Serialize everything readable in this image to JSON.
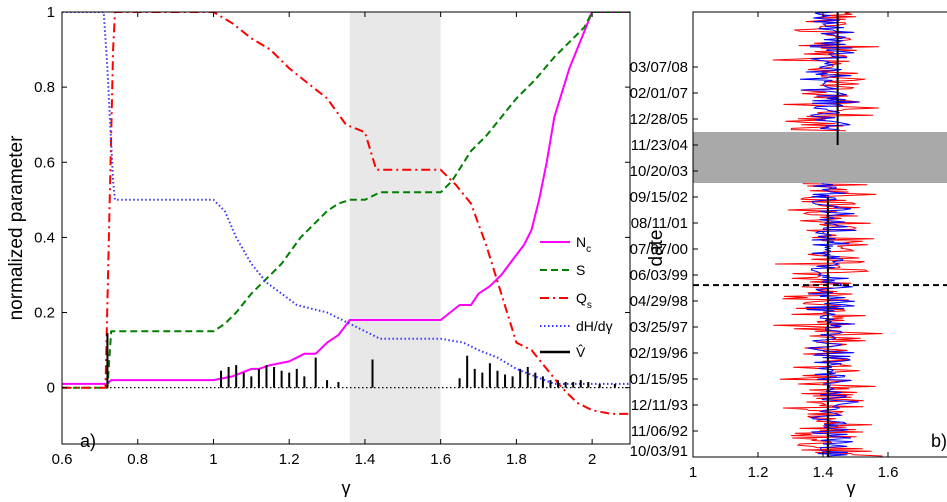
{
  "chart_data": [
    {
      "type": "line",
      "panel_label": "a)",
      "xlabel": "γ",
      "ylabel": "normalized parameter",
      "xlim": [
        0.6,
        2.1
      ],
      "ylim": [
        -0.15,
        1.0
      ],
      "xticks": [
        "0.6",
        "0.8",
        "1",
        "1.2",
        "1.4",
        "1.6",
        "1.8",
        "2"
      ],
      "xtick_values": [
        0.6,
        0.8,
        1.0,
        1.2,
        1.4,
        1.6,
        1.8,
        2.0
      ],
      "yticks": [
        "0",
        "0.2",
        "0.4",
        "0.6",
        "0.8",
        "1"
      ],
      "ytick_values": [
        0,
        0.2,
        0.4,
        0.6,
        0.8,
        1.0
      ],
      "shaded_region": [
        1.36,
        1.6
      ],
      "grid": false,
      "legend_position": "right",
      "series": [
        {
          "key": "Nc",
          "legend_main": "N",
          "legend_sub": "c",
          "color": "#ff00ff",
          "style": "solid",
          "x": [
            0.6,
            0.72,
            0.73,
            1.0,
            1.05,
            1.1,
            1.12,
            1.15,
            1.2,
            1.24,
            1.27,
            1.3,
            1.33,
            1.36,
            1.6,
            1.65,
            1.68,
            1.7,
            1.73,
            1.76,
            1.79,
            1.82,
            1.84,
            1.86,
            1.88,
            1.9,
            1.94,
            1.98,
            2.0,
            2.1
          ],
          "y": [
            0.01,
            0.01,
            0.02,
            0.02,
            0.03,
            0.05,
            0.05,
            0.06,
            0.07,
            0.09,
            0.09,
            0.12,
            0.14,
            0.18,
            0.18,
            0.22,
            0.22,
            0.25,
            0.27,
            0.3,
            0.34,
            0.38,
            0.42,
            0.5,
            0.6,
            0.72,
            0.85,
            0.95,
            1.0,
            1.0
          ]
        },
        {
          "key": "S",
          "legend_main": "S",
          "legend_sub": "",
          "color": "#008000",
          "style": "dashed",
          "x": [
            0.6,
            0.72,
            0.73,
            1.0,
            1.03,
            1.06,
            1.1,
            1.15,
            1.18,
            1.23,
            1.27,
            1.3,
            1.33,
            1.36,
            1.4,
            1.44,
            1.6,
            1.63,
            1.68,
            1.72,
            1.76,
            1.8,
            1.85,
            1.9,
            1.95,
            1.98,
            2.0,
            2.1
          ],
          "y": [
            0.0,
            0.0,
            0.15,
            0.15,
            0.17,
            0.2,
            0.25,
            0.3,
            0.33,
            0.4,
            0.44,
            0.47,
            0.49,
            0.5,
            0.5,
            0.52,
            0.52,
            0.55,
            0.63,
            0.67,
            0.72,
            0.77,
            0.82,
            0.88,
            0.93,
            0.96,
            1.0,
            1.0
          ]
        },
        {
          "key": "Qs",
          "legend_main": "Q",
          "legend_sub": "s",
          "color": "#ff0000",
          "style": "dashdot",
          "x": [
            0.6,
            0.715,
            0.735,
            0.74,
            1.0,
            1.05,
            1.1,
            1.15,
            1.2,
            1.25,
            1.3,
            1.35,
            1.4,
            1.43,
            1.6,
            1.64,
            1.68,
            1.72,
            1.76,
            1.8,
            1.84,
            1.88,
            1.92,
            1.96,
            2.0,
            2.05,
            2.1
          ],
          "y": [
            0.0,
            0.0,
            0.9,
            1.0,
            1.0,
            0.97,
            0.93,
            0.9,
            0.85,
            0.81,
            0.77,
            0.7,
            0.68,
            0.58,
            0.58,
            0.54,
            0.49,
            0.38,
            0.25,
            0.12,
            0.1,
            0.05,
            0.0,
            -0.04,
            -0.06,
            -0.07,
            -0.07
          ]
        },
        {
          "key": "dHdg",
          "legend_main": "dH/dγ",
          "legend_sub": "",
          "color": "#3333ff",
          "style": "dotted",
          "x": [
            0.6,
            0.71,
            0.72,
            0.735,
            0.74,
            1.0,
            1.03,
            1.06,
            1.1,
            1.14,
            1.18,
            1.22,
            1.26,
            1.3,
            1.34,
            1.38,
            1.44,
            1.6,
            1.66,
            1.7,
            1.75,
            1.8,
            1.85,
            1.9,
            1.95,
            2.0,
            2.1
          ],
          "y": [
            1.0,
            1.0,
            0.85,
            0.55,
            0.5,
            0.5,
            0.47,
            0.4,
            0.33,
            0.28,
            0.25,
            0.22,
            0.21,
            0.2,
            0.18,
            0.16,
            0.13,
            0.13,
            0.12,
            0.1,
            0.08,
            0.05,
            0.03,
            0.01,
            0.01,
            0.01,
            0.01
          ]
        },
        {
          "key": "V",
          "legend_main": "V̂",
          "legend_sub": "",
          "color": "#000000",
          "style": "stem",
          "x": [
            0.72,
            1.02,
            1.04,
            1.06,
            1.08,
            1.1,
            1.12,
            1.14,
            1.16,
            1.18,
            1.2,
            1.22,
            1.24,
            1.27,
            1.3,
            1.33,
            1.42,
            1.65,
            1.67,
            1.69,
            1.71,
            1.73,
            1.75,
            1.77,
            1.79,
            1.81,
            1.83,
            1.85,
            1.87,
            1.89,
            1.91,
            1.93,
            1.95,
            1.97,
            1.99,
            2.02,
            2.06
          ],
          "y": [
            0.145,
            0.045,
            0.055,
            0.06,
            0.04,
            0.03,
            0.05,
            0.06,
            0.055,
            0.045,
            0.04,
            0.05,
            0.03,
            0.08,
            0.02,
            0.015,
            0.075,
            0.025,
            0.085,
            0.05,
            0.04,
            0.065,
            0.045,
            0.035,
            0.03,
            0.05,
            0.055,
            0.04,
            0.03,
            0.02,
            0.02,
            0.015,
            0.015,
            0.02,
            0.015,
            0.01,
            0.01
          ]
        }
      ]
    },
    {
      "type": "line",
      "panel_label": "b)",
      "xlabel": "γ",
      "ylabel": "date",
      "xlim": [
        1.0,
        1.8
      ],
      "xticks": [
        "1",
        "1.2",
        "1.4",
        "1.6"
      ],
      "xtick_values": [
        1.0,
        1.2,
        1.4,
        1.6
      ],
      "yticks": [
        "10/03/91",
        "11/06/92",
        "12/11/93",
        "01/15/95",
        "02/19/96",
        "03/25/97",
        "04/29/98",
        "06/03/99",
        "07/07/00",
        "08/11/01",
        "09/15/02",
        "10/20/03",
        "11/23/04",
        "12/28/05",
        "02/01/07",
        "03/07/08"
      ],
      "gap_region": [
        "09/15/02",
        "11/23/04"
      ],
      "dashed_line_date": "05/21/99",
      "series": [
        {
          "name": "",
          "color": "#ff0000",
          "center": 1.42,
          "spread": 0.11
        },
        {
          "name": "",
          "color": "#0000ff",
          "center": 1.42,
          "spread": 0.06
        }
      ],
      "mean_line": {
        "color": "#000000",
        "segments": [
          {
            "from": "10/03/91",
            "to": "09/15/02",
            "gamma": 1.415
          },
          {
            "from": "11/23/04",
            "to": "03/07/08",
            "gamma": 1.445
          }
        ]
      }
    }
  ]
}
